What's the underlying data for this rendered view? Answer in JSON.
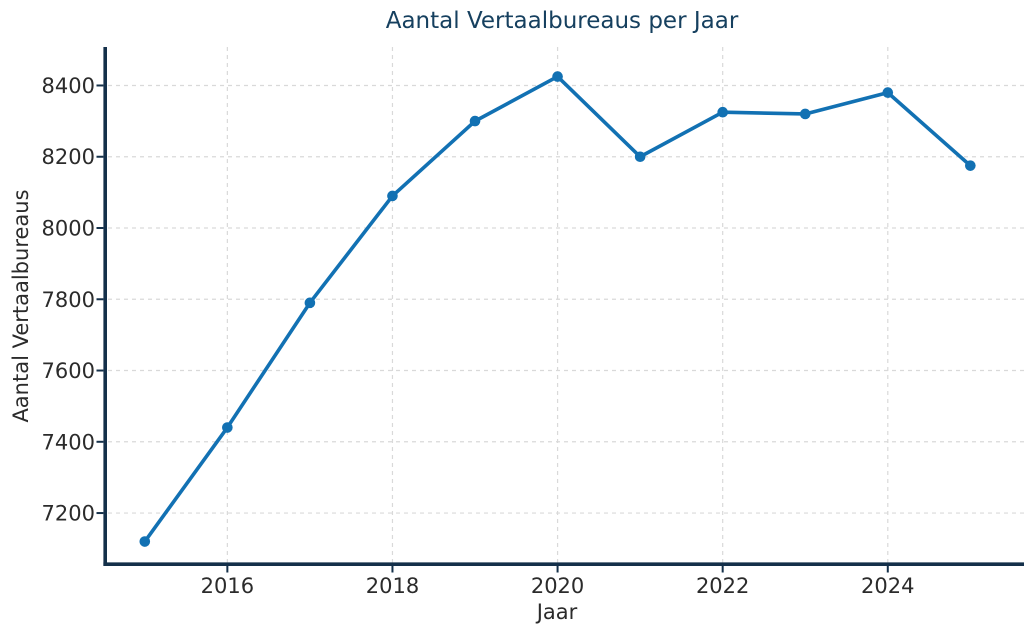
{
  "chart_data": {
    "type": "line",
    "title": "Aantal Vertaalbureaus per Jaar",
    "xlabel": "Jaar",
    "ylabel": "Aantal Vertaalbureaus",
    "x": [
      2015,
      2016,
      2017,
      2018,
      2019,
      2020,
      2021,
      2022,
      2023,
      2024,
      2025
    ],
    "values": [
      7120,
      7440,
      7790,
      8090,
      8300,
      8425,
      8200,
      8325,
      8320,
      8380,
      8175
    ],
    "xticks": [
      2016,
      2018,
      2020,
      2022,
      2024
    ],
    "yticks": [
      7200,
      7400,
      7600,
      7800,
      8000,
      8200,
      8400
    ],
    "xlim": [
      2014.53,
      2025.65
    ],
    "ylim": [
      7057,
      8508
    ],
    "grid": "dashed-both-axes",
    "legend": "none",
    "marker": "circle",
    "colors": {
      "line": "#1271b3",
      "marker": "#1271b3",
      "spine": "#14304a",
      "title": "#16405f",
      "tick_label": "#2b2b2b",
      "grid": "#d9d9d9",
      "background": "#ffffff"
    }
  }
}
